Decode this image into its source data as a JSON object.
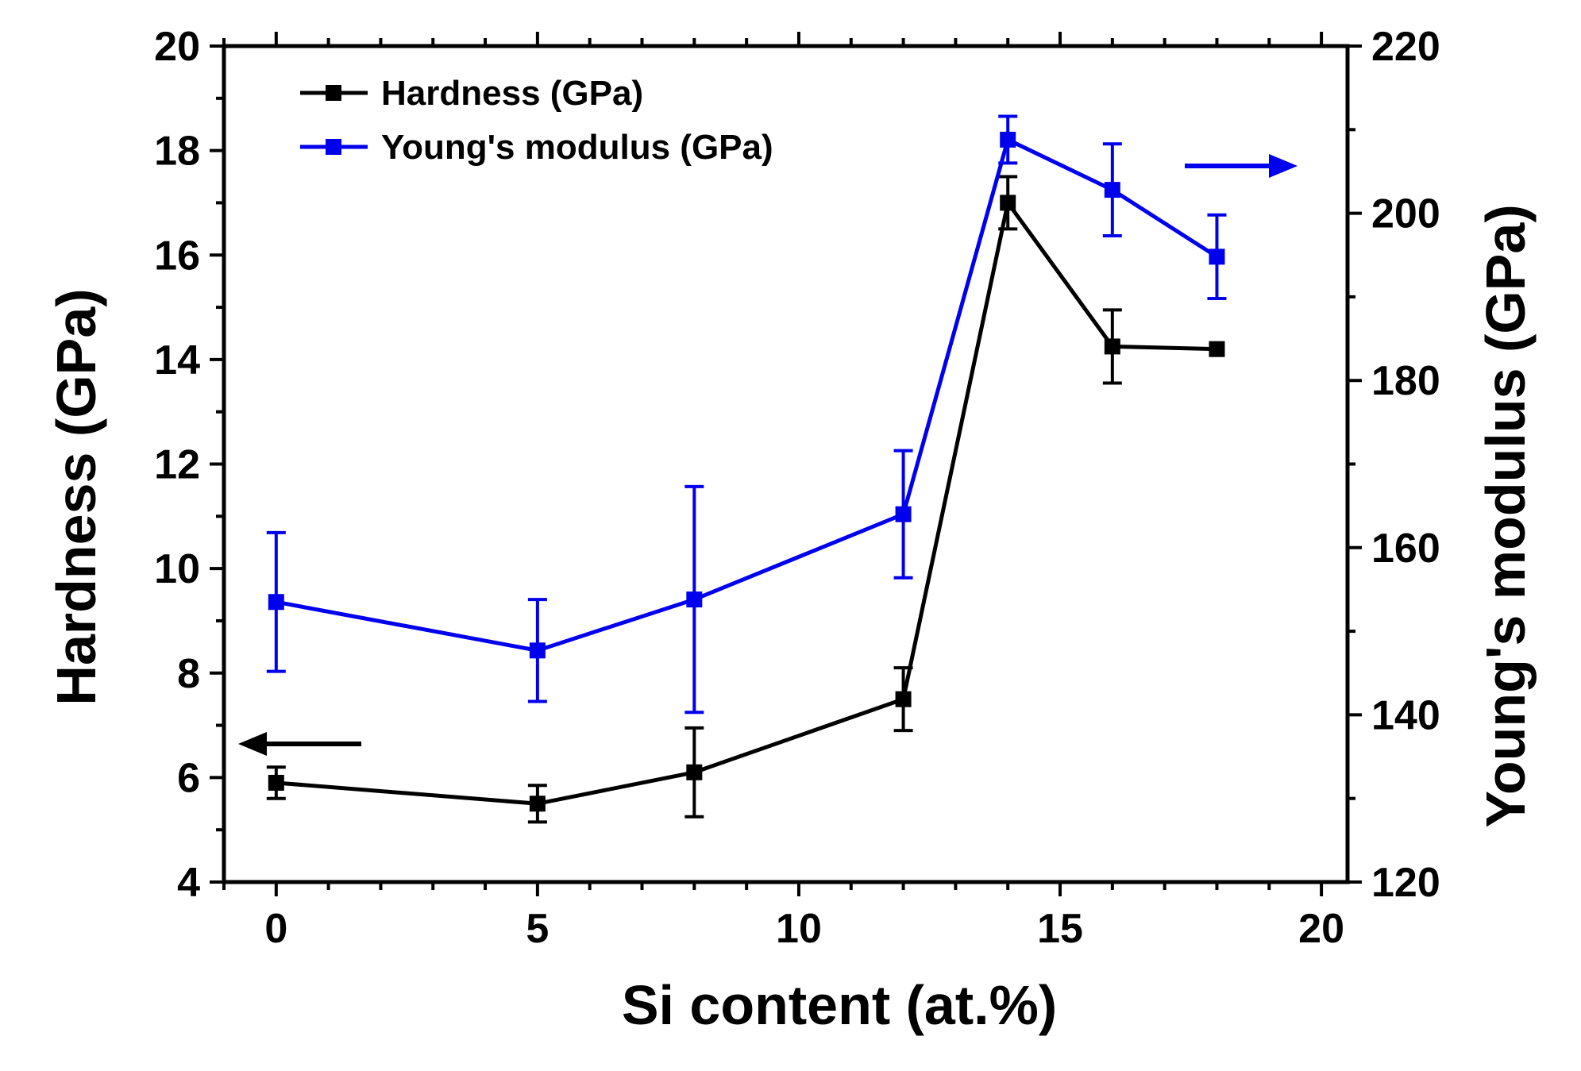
{
  "chart_data": {
    "type": "line",
    "title": "",
    "xlabel": "Si content (at.%)",
    "ylabel": "Hardness (GPa)",
    "y2label": "Young's modulus (GPa)",
    "xlim": [
      -1,
      20.5
    ],
    "ylim": [
      4,
      20
    ],
    "y2lim": [
      120,
      220
    ],
    "xticks": [
      0,
      5,
      10,
      15,
      20
    ],
    "yticks": [
      4,
      6,
      8,
      10,
      12,
      14,
      16,
      18,
      20
    ],
    "y2ticks": [
      120,
      140,
      160,
      180,
      200,
      220
    ],
    "legend_position": "top-left",
    "series": [
      {
        "name": "Hardness (GPa)",
        "axis": "left",
        "color": "#000000",
        "x": [
          0,
          5,
          8,
          12,
          14,
          16,
          18
        ],
        "values": [
          5.9,
          5.5,
          6.1,
          7.5,
          17.0,
          14.25,
          14.2
        ],
        "errors": [
          0.3,
          0.35,
          0.85,
          0.6,
          0.5,
          0.7,
          0
        ]
      },
      {
        "name": "Young's modulus (GPa)",
        "axis": "right",
        "color": "#0000ee",
        "x": [
          0,
          5,
          8,
          12,
          14,
          16,
          18
        ],
        "values": [
          153.5,
          147.7,
          153.8,
          164.0,
          208.8,
          202.8,
          194.8
        ],
        "errors": [
          8.3,
          6.1,
          13.5,
          7.6,
          2.8,
          5.5,
          5.0
        ]
      }
    ],
    "annotations": [
      {
        "type": "arrow",
        "points_to": "left-axis",
        "series": "Hardness (GPa)"
      },
      {
        "type": "arrow",
        "points_to": "right-axis",
        "series": "Young's modulus (GPa)"
      }
    ]
  }
}
